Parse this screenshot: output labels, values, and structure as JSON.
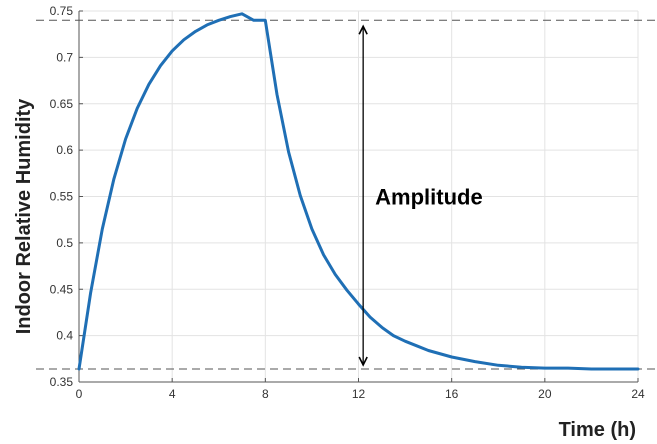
{
  "chart_data": {
    "type": "line",
    "xlabel": "Time (h)",
    "ylabel": "Indoor Relative Humidity",
    "xlim": [
      0,
      24
    ],
    "ylim": [
      0.35,
      0.75
    ],
    "x_ticks": [
      0,
      4,
      8,
      12,
      16,
      20,
      24
    ],
    "y_ticks": [
      0.35,
      0.4,
      0.45,
      0.5,
      0.55,
      0.6,
      0.65,
      0.7,
      0.75
    ],
    "y_tick_labels": [
      "0.35",
      "0.4",
      "0.45",
      "0.5",
      "0.55",
      "0.6",
      "0.65",
      "0.7",
      "0.75"
    ],
    "grid": true,
    "series": [
      {
        "color": "#1f6fb5",
        "x": [
          0,
          0.5,
          1,
          1.5,
          2,
          2.5,
          3,
          3.5,
          4,
          4.5,
          5,
          5.5,
          6,
          6.5,
          7,
          7.5,
          8,
          8.5,
          9,
          9.5,
          10,
          10.5,
          11,
          11.5,
          12,
          12.5,
          13,
          13.5,
          14,
          14.5,
          15,
          16,
          17,
          18,
          19,
          20,
          21,
          22,
          23,
          24
        ],
        "y": [
          0.364,
          0.446,
          0.515,
          0.569,
          0.612,
          0.645,
          0.671,
          0.691,
          0.707,
          0.719,
          0.728,
          0.735,
          0.74,
          0.744,
          0.747,
          0.74,
          0.74,
          0.66,
          0.598,
          0.551,
          0.515,
          0.487,
          0.466,
          0.449,
          0.434,
          0.42,
          0.409,
          0.4,
          0.394,
          0.389,
          0.384,
          0.377,
          0.372,
          0.368,
          0.366,
          0.365,
          0.365,
          0.364,
          0.364,
          0.364
        ]
      }
    ],
    "reference_lines": [
      {
        "axis": "y",
        "value": 0.74,
        "style": "dashed"
      },
      {
        "axis": "y",
        "value": 0.364,
        "style": "dashed"
      }
    ],
    "annotations": [
      {
        "text": "Amplitude",
        "x": 12.2,
        "y_from": 0.364,
        "y_to": 0.74
      }
    ]
  }
}
